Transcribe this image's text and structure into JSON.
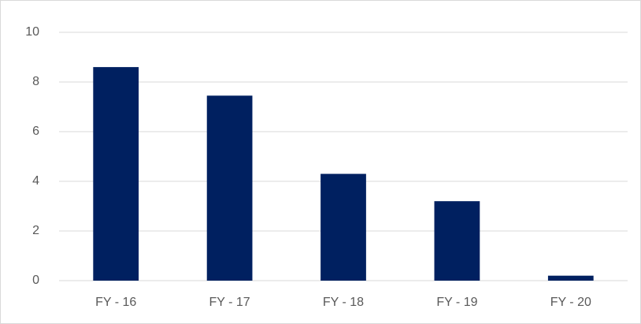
{
  "chart_data": {
    "type": "bar",
    "categories": [
      "FY - 16",
      "FY - 17",
      "FY - 18",
      "FY - 19",
      "FY - 20"
    ],
    "values": [
      8.6,
      7.45,
      4.3,
      3.2,
      0.2
    ],
    "color": "#002060",
    "ylim": [
      0,
      10
    ],
    "yticks": [
      0,
      2,
      4,
      6,
      8,
      10
    ],
    "grid": true
  }
}
